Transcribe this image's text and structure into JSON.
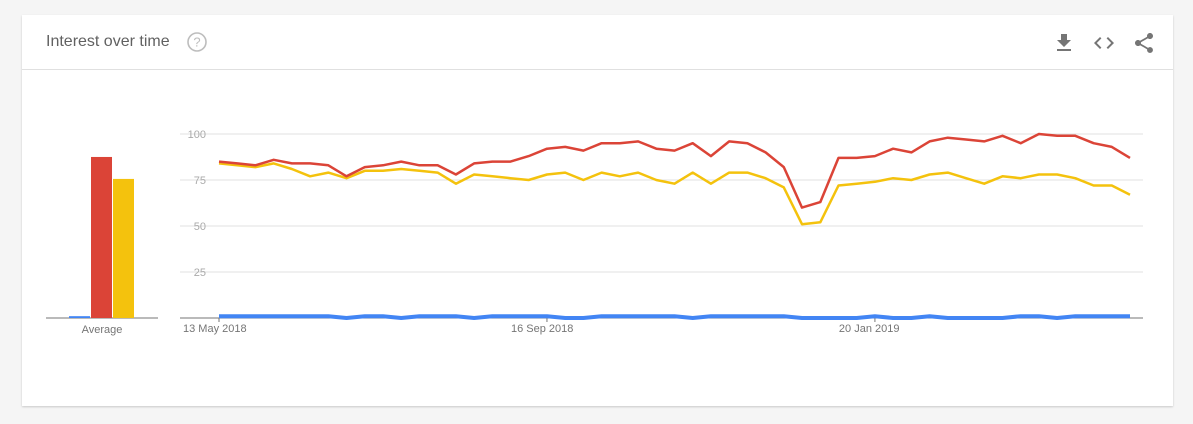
{
  "header": {
    "title": "Interest over time",
    "help_icon": "help-circle-icon",
    "tools": [
      {
        "name": "download-icon"
      },
      {
        "name": "embed-code-icon"
      },
      {
        "name": "share-icon"
      }
    ]
  },
  "colors": {
    "red": "#db4437",
    "yellow": "#f4c20d",
    "blue": "#4285f4",
    "grid": "#e0e0e0",
    "axis": "#757575"
  },
  "chart_data": [
    {
      "type": "bar",
      "categories": [
        "Average"
      ],
      "series": [
        {
          "color": "#4285f4",
          "values": [
            1
          ]
        },
        {
          "color": "#db4437",
          "values": [
            88
          ]
        },
        {
          "color": "#f4c20d",
          "values": [
            76
          ]
        }
      ],
      "ylim": [
        0,
        100
      ]
    },
    {
      "type": "line",
      "x_tick_labels": [
        "13 May 2018",
        "16 Sep 2018",
        "20 Jan 2019"
      ],
      "x_tick_indices": [
        0,
        18,
        36
      ],
      "y_ticks": [
        25,
        50,
        75,
        100
      ],
      "ylim": [
        0,
        100
      ],
      "grid": true,
      "series": [
        {
          "color": "#db4437",
          "values": [
            85,
            84,
            83,
            86,
            84,
            84,
            83,
            77,
            82,
            83,
            85,
            83,
            83,
            78,
            84,
            85,
            85,
            88,
            92,
            93,
            91,
            95,
            95,
            96,
            92,
            91,
            95,
            88,
            96,
            95,
            90,
            82,
            60,
            63,
            87,
            87,
            88,
            92,
            90,
            96,
            98,
            97,
            96,
            99,
            95,
            100,
            99,
            99,
            95,
            93,
            87
          ]
        },
        {
          "color": "#f4c20d",
          "values": [
            84,
            83,
            82,
            84,
            81,
            77,
            79,
            76,
            80,
            80,
            81,
            80,
            79,
            73,
            78,
            77,
            76,
            75,
            78,
            79,
            75,
            79,
            77,
            79,
            75,
            73,
            79,
            73,
            79,
            79,
            76,
            71,
            51,
            52,
            72,
            73,
            74,
            76,
            75,
            78,
            79,
            76,
            73,
            77,
            76,
            78,
            78,
            76,
            72,
            72,
            67
          ]
        },
        {
          "color": "#4285f4",
          "values": [
            1,
            1,
            1,
            1,
            1,
            1,
            1,
            0,
            1,
            1,
            0,
            1,
            1,
            1,
            0,
            1,
            1,
            1,
            1,
            0,
            0,
            1,
            1,
            1,
            1,
            1,
            0,
            1,
            1,
            1,
            1,
            1,
            0,
            0,
            0,
            0,
            1,
            0,
            0,
            1,
            0,
            0,
            0,
            0,
            1,
            1,
            0,
            1,
            1,
            1,
            1
          ]
        }
      ]
    }
  ]
}
